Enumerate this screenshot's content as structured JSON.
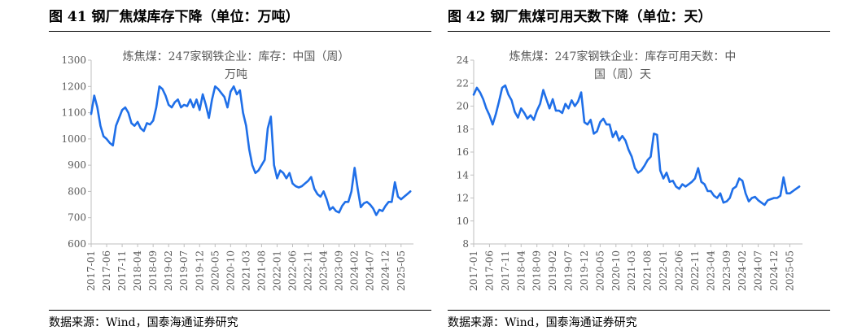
{
  "figures": [
    {
      "title": "图 41  钢厂焦煤库存下降（单位：万吨）",
      "source": "数据来源：Wind，国泰海通证券研究"
    },
    {
      "title": "图 42  钢厂焦煤可用天数下降（单位：天）",
      "source": "数据来源：Wind，国泰海通证券研究"
    }
  ],
  "chart_data": [
    {
      "type": "line",
      "legend": [
        "炼焦煤：247家钢铁企业：库存：中国（周）",
        "万吨"
      ],
      "ylim": [
        600,
        1300
      ],
      "yticks": [
        600,
        700,
        800,
        900,
        1000,
        1100,
        1200,
        1300
      ],
      "xlim": [
        "2017-01",
        "2025-09"
      ],
      "xticks": [
        "2017-01",
        "2017-06",
        "2017-11",
        "2018-04",
        "2018-09",
        "2019-02",
        "2019-07",
        "2019-12",
        "2020-05",
        "2020-10",
        "2021-03",
        "2021-08",
        "2022-01",
        "2022-06",
        "2022-11",
        "2023-04",
        "2023-09",
        "2024-02",
        "2024-07",
        "2024-12",
        "2025-05"
      ],
      "grid": false,
      "color": "#1f6fe8",
      "series": [
        {
          "x": [
            "2017-01",
            "2017-02",
            "2017-03",
            "2017-04",
            "2017-05",
            "2017-06",
            "2017-07",
            "2017-08",
            "2017-09",
            "2017-10",
            "2017-11",
            "2017-12",
            "2018-01",
            "2018-02",
            "2018-03",
            "2018-04",
            "2018-05",
            "2018-06",
            "2018-07",
            "2018-08",
            "2018-09",
            "2018-10",
            "2018-11",
            "2018-12",
            "2019-01",
            "2019-02",
            "2019-03",
            "2019-04",
            "2019-05",
            "2019-06",
            "2019-07",
            "2019-08",
            "2019-09",
            "2019-10",
            "2019-11",
            "2019-12",
            "2020-01",
            "2020-02",
            "2020-03",
            "2020-04",
            "2020-05",
            "2020-06",
            "2020-07",
            "2020-08",
            "2020-09",
            "2020-10",
            "2020-11",
            "2020-12",
            "2021-01",
            "2021-02",
            "2021-03",
            "2021-04",
            "2021-05",
            "2021-06",
            "2021-07",
            "2021-08",
            "2021-09",
            "2021-10",
            "2021-11",
            "2021-12",
            "2022-01",
            "2022-02",
            "2022-03",
            "2022-04",
            "2022-05",
            "2022-06",
            "2022-07",
            "2022-08",
            "2022-09",
            "2022-10",
            "2022-11",
            "2022-12",
            "2023-01",
            "2023-02",
            "2023-03",
            "2023-04",
            "2023-05",
            "2023-06",
            "2023-07",
            "2023-08",
            "2023-09",
            "2023-10",
            "2023-11",
            "2023-12",
            "2024-01",
            "2024-02",
            "2024-03",
            "2024-04",
            "2024-05",
            "2024-06",
            "2024-07",
            "2024-08",
            "2024-09",
            "2024-10",
            "2024-11",
            "2024-12",
            "2025-01",
            "2025-02",
            "2025-03",
            "2025-04",
            "2025-05",
            "2025-06",
            "2025-07",
            "2025-08"
          ],
          "values": [
            1095,
            1165,
            1120,
            1050,
            1010,
            1000,
            985,
            975,
            1050,
            1080,
            1110,
            1120,
            1100,
            1060,
            1050,
            1065,
            1040,
            1030,
            1060,
            1055,
            1070,
            1120,
            1200,
            1190,
            1165,
            1130,
            1120,
            1140,
            1150,
            1120,
            1130,
            1125,
            1150,
            1120,
            1150,
            1110,
            1170,
            1130,
            1080,
            1150,
            1200,
            1190,
            1175,
            1160,
            1120,
            1180,
            1200,
            1170,
            1185,
            1100,
            1050,
            960,
            900,
            870,
            880,
            900,
            920,
            1040,
            1085,
            900,
            850,
            880,
            870,
            850,
            870,
            830,
            820,
            815,
            820,
            830,
            840,
            855,
            810,
            790,
            780,
            800,
            770,
            730,
            740,
            725,
            720,
            745,
            760,
            760,
            800,
            890,
            810,
            740,
            755,
            760,
            750,
            735,
            710,
            730,
            725,
            745,
            760,
            760,
            835,
            780,
            770,
            780,
            790,
            800
          ]
        }
      ]
    },
    {
      "type": "line",
      "legend": [
        "炼焦煤：247家钢铁企业：库存可用天数：中",
        "国（周）天"
      ],
      "ylim": [
        8,
        24
      ],
      "yticks": [
        8,
        10,
        12,
        14,
        16,
        18,
        20,
        22,
        24
      ],
      "xlim": [
        "2017-01",
        "2025-09"
      ],
      "xticks": [
        "2017-01",
        "2017-06",
        "2017-11",
        "2018-04",
        "2018-09",
        "2019-02",
        "2019-07",
        "2019-12",
        "2020-05",
        "2020-10",
        "2021-03",
        "2021-08",
        "2022-01",
        "2022-06",
        "2022-11",
        "2023-04",
        "2023-09",
        "2024-02",
        "2024-07",
        "2024-12",
        "2025-05"
      ],
      "grid": false,
      "color": "#1f6fe8",
      "series": [
        {
          "x": [
            "2017-01",
            "2017-02",
            "2017-03",
            "2017-04",
            "2017-05",
            "2017-06",
            "2017-07",
            "2017-08",
            "2017-09",
            "2017-10",
            "2017-11",
            "2017-12",
            "2018-01",
            "2018-02",
            "2018-03",
            "2018-04",
            "2018-05",
            "2018-06",
            "2018-07",
            "2018-08",
            "2018-09",
            "2018-10",
            "2018-11",
            "2018-12",
            "2019-01",
            "2019-02",
            "2019-03",
            "2019-04",
            "2019-05",
            "2019-06",
            "2019-07",
            "2019-08",
            "2019-09",
            "2019-10",
            "2019-11",
            "2019-12",
            "2020-01",
            "2020-02",
            "2020-03",
            "2020-04",
            "2020-05",
            "2020-06",
            "2020-07",
            "2020-08",
            "2020-09",
            "2020-10",
            "2020-11",
            "2020-12",
            "2021-01",
            "2021-02",
            "2021-03",
            "2021-04",
            "2021-05",
            "2021-06",
            "2021-07",
            "2021-08",
            "2021-09",
            "2021-10",
            "2021-11",
            "2021-12",
            "2022-01",
            "2022-02",
            "2022-03",
            "2022-04",
            "2022-05",
            "2022-06",
            "2022-07",
            "2022-08",
            "2022-09",
            "2022-10",
            "2022-11",
            "2022-12",
            "2023-01",
            "2023-02",
            "2023-03",
            "2023-04",
            "2023-05",
            "2023-06",
            "2023-07",
            "2023-08",
            "2023-09",
            "2023-10",
            "2023-11",
            "2023-12",
            "2024-01",
            "2024-02",
            "2024-03",
            "2024-04",
            "2024-05",
            "2024-06",
            "2024-07",
            "2024-08",
            "2024-09",
            "2024-10",
            "2024-11",
            "2024-12",
            "2025-01",
            "2025-02",
            "2025-03",
            "2025-04",
            "2025-05",
            "2025-06",
            "2025-07",
            "2025-08"
          ],
          "values": [
            21.0,
            21.6,
            21.2,
            20.6,
            19.8,
            19.2,
            18.4,
            19.3,
            20.4,
            21.6,
            21.8,
            21.0,
            20.5,
            19.5,
            19.0,
            19.8,
            19.4,
            18.9,
            19.2,
            18.8,
            19.6,
            20.2,
            21.4,
            20.6,
            19.8,
            20.6,
            19.6,
            19.6,
            19.4,
            20.2,
            19.8,
            20.5,
            20.0,
            20.4,
            21.2,
            18.6,
            18.4,
            18.8,
            17.6,
            17.8,
            18.6,
            18.9,
            18.4,
            18.4,
            17.3,
            17.8,
            17.0,
            17.4,
            17.0,
            16.2,
            15.6,
            14.6,
            14.2,
            14.4,
            14.8,
            15.3,
            15.6,
            17.6,
            17.5,
            14.4,
            13.7,
            14.2,
            13.4,
            13.5,
            13.0,
            12.8,
            13.2,
            13.0,
            13.2,
            13.4,
            13.7,
            14.6,
            13.4,
            13.2,
            12.6,
            12.6,
            12.2,
            12.0,
            12.4,
            11.6,
            11.7,
            12.0,
            12.8,
            13.0,
            13.7,
            13.5,
            12.4,
            11.7,
            12.0,
            12.1,
            11.8,
            11.6,
            11.4,
            11.8,
            11.9,
            12.0,
            12.0,
            12.2,
            13.8,
            12.4,
            12.4,
            12.6,
            12.8,
            13.0
          ]
        }
      ]
    }
  ]
}
